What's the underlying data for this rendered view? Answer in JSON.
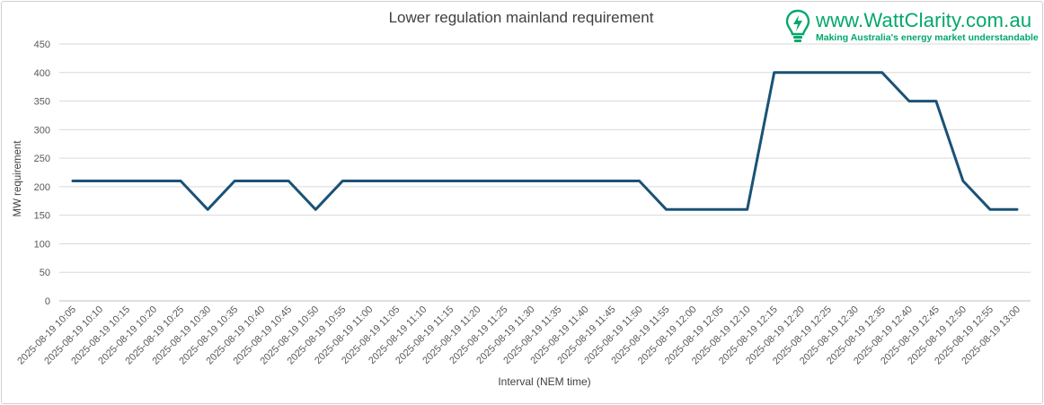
{
  "brand": {
    "url": "www.WattClarity.com.au",
    "tagline": "Making Australia's energy market understandable",
    "icon": "lightbulb-bolt-icon",
    "color": "#00a86b"
  },
  "chart_data": {
    "type": "line",
    "title": "Lower regulation mainland requirement",
    "xlabel": "Interval (NEM time)",
    "ylabel": "MW requirement",
    "ylim": [
      0,
      450
    ],
    "yticks": [
      0,
      50,
      100,
      150,
      200,
      250,
      300,
      350,
      400,
      450
    ],
    "grid": true,
    "line_color": "#1a5276",
    "categories": [
      "2025-08-19 10:05",
      "2025-08-19 10:10",
      "2025-08-19 10:15",
      "2025-08-19 10:20",
      "2025-08-19 10:25",
      "2025-08-19 10:30",
      "2025-08-19 10:35",
      "2025-08-19 10:40",
      "2025-08-19 10:45",
      "2025-08-19 10:50",
      "2025-08-19 10:55",
      "2025-08-19 11:00",
      "2025-08-19 11:05",
      "2025-08-19 11:10",
      "2025-08-19 11:15",
      "2025-08-19 11:20",
      "2025-08-19 11:25",
      "2025-08-19 11:30",
      "2025-08-19 11:35",
      "2025-08-19 11:40",
      "2025-08-19 11:45",
      "2025-08-19 11:50",
      "2025-08-19 11:55",
      "2025-08-19 12:00",
      "2025-08-19 12:05",
      "2025-08-19 12:10",
      "2025-08-19 12:15",
      "2025-08-19 12:20",
      "2025-08-19 12:25",
      "2025-08-19 12:30",
      "2025-08-19 12:35",
      "2025-08-19 12:40",
      "2025-08-19 12:45",
      "2025-08-19 12:50",
      "2025-08-19 12:55",
      "2025-08-19 13:00"
    ],
    "series": [
      {
        "values": [
          210,
          210,
          210,
          210,
          210,
          160,
          210,
          210,
          210,
          160,
          210,
          210,
          210,
          210,
          210,
          210,
          210,
          210,
          210,
          210,
          210,
          210,
          160,
          160,
          160,
          160,
          400,
          400,
          400,
          400,
          400,
          350,
          350,
          210,
          160,
          160
        ]
      }
    ]
  }
}
